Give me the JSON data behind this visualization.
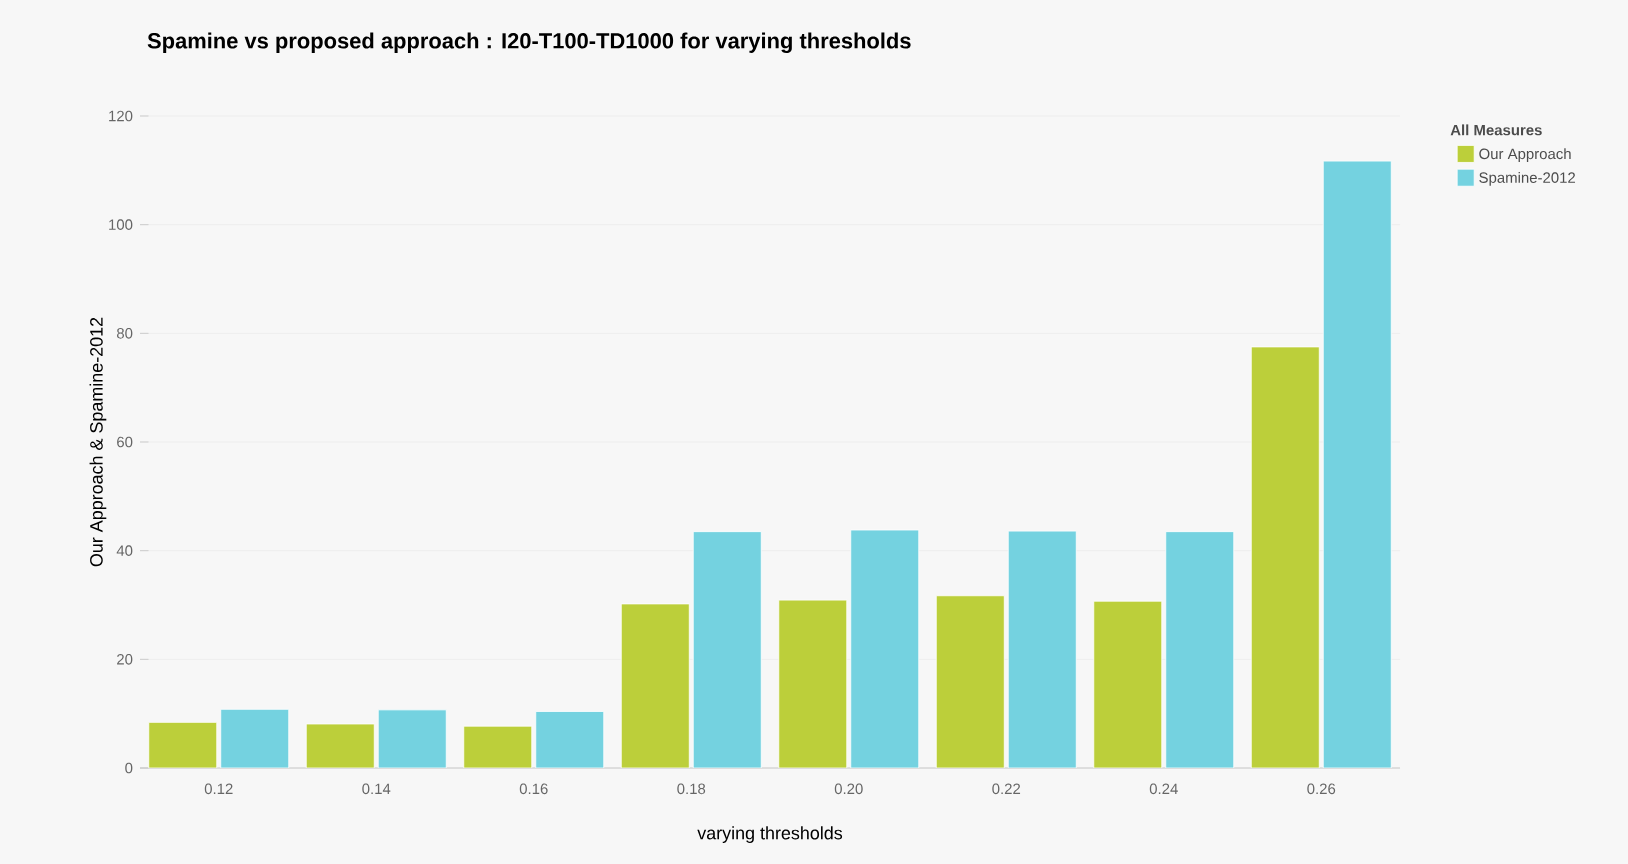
{
  "chart_data": {
    "type": "bar",
    "title": "Spamine vs proposed approach : I20-T100-TD1000 for varying thresholds",
    "xlabel": "varying thresholds",
    "ylabel": "Our Approach & Spamine-2012",
    "legend_title": "All Measures",
    "categories": [
      "0.12",
      "0.14",
      "0.16",
      "0.18",
      "0.20",
      "0.22",
      "0.24",
      "0.26"
    ],
    "series": [
      {
        "name": "Our Approach",
        "color": "#bccf3a",
        "values": [
          8.4,
          8.1,
          7.7,
          30.2,
          30.9,
          31.7,
          30.7,
          77.5
        ]
      },
      {
        "name": "Spamine-2012",
        "color": "#74d2e0",
        "values": [
          10.8,
          10.7,
          10.4,
          43.5,
          43.8,
          43.6,
          43.5,
          111.7
        ]
      }
    ],
    "ylim": [
      0,
      120
    ],
    "yticks": [
      0,
      20,
      40,
      60,
      80,
      100,
      120
    ],
    "grid": "y",
    "legend": "top right"
  }
}
